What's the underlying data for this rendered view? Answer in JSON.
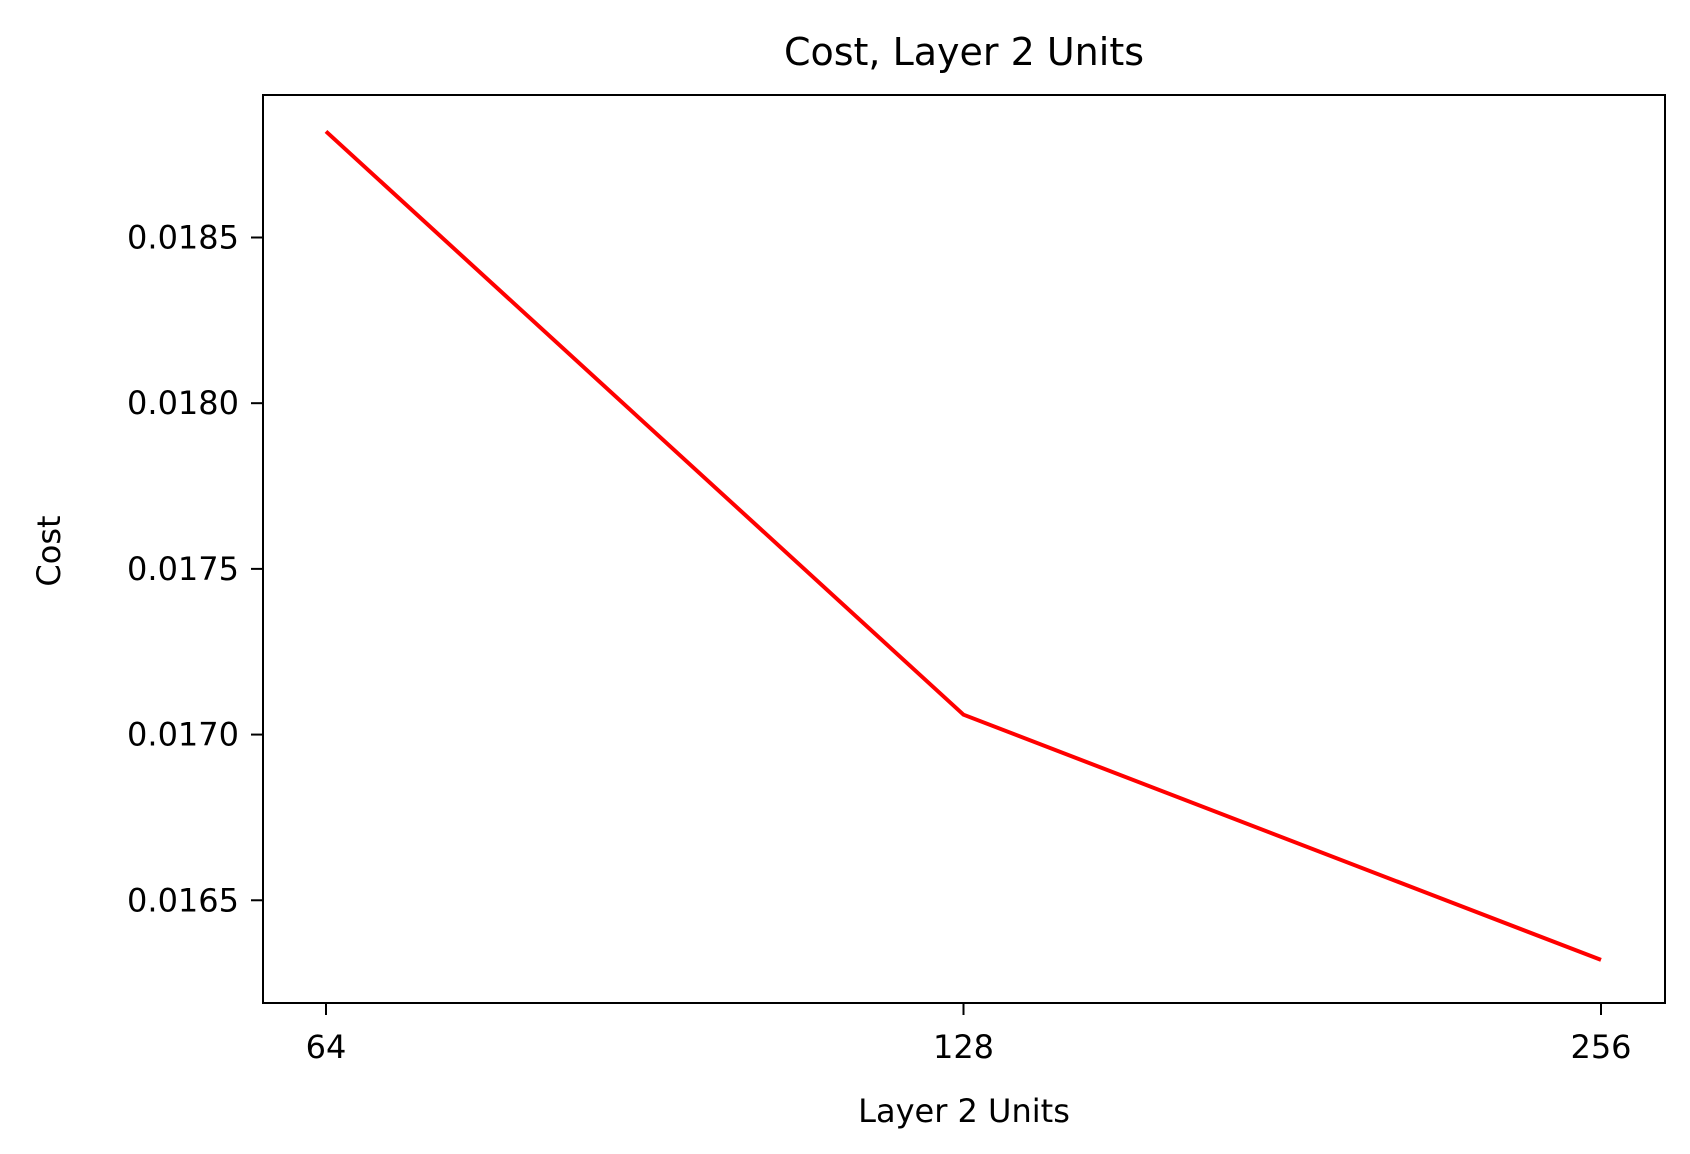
{
  "chart_data": {
    "type": "line",
    "title": "Cost, Layer 2 Units",
    "xlabel": "Layer 2 Units",
    "ylabel": "Cost",
    "categories": [
      "64",
      "128",
      "256"
    ],
    "series": [
      {
        "values": [
          0.01882,
          0.01706,
          0.01632
        ],
        "color": "#ff0000"
      }
    ],
    "yticks": [
      0.0165,
      0.017,
      0.0175,
      0.018,
      0.0185
    ],
    "ytick_labels": [
      "0.0165",
      "0.0170",
      "0.0175",
      "0.0180",
      "0.0185"
    ],
    "ylim": [
      0.01619,
      0.01893
    ],
    "grid": false,
    "legend": false
  }
}
